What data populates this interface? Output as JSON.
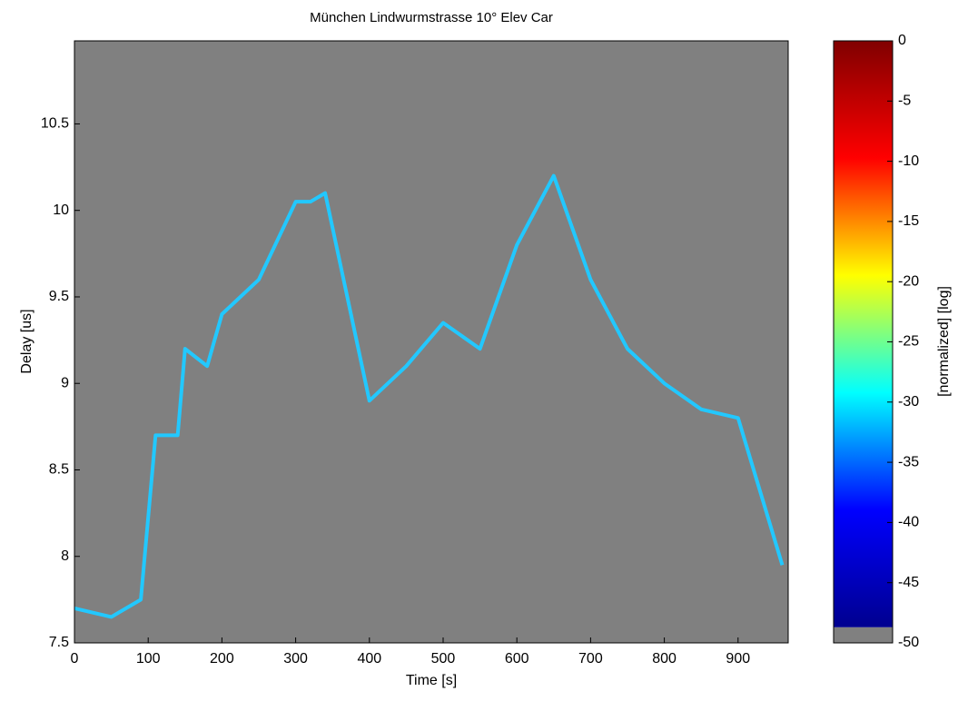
{
  "chart_data": {
    "type": "heatmap-trace",
    "title": "München Lindwurmstrasse 10° Elev Car",
    "x_label": "Time [s]",
    "y_label": "Delay [us]",
    "xlim": [
      0,
      968
    ],
    "ylim": [
      7.5,
      10.98
    ],
    "xticks": [
      0,
      100,
      200,
      300,
      400,
      500,
      600,
      700,
      800,
      900
    ],
    "yticks": [
      7.5,
      8,
      8.5,
      9,
      9.5,
      10,
      10.5
    ],
    "background": "#808080",
    "series": [
      {
        "color": "#22c8ff",
        "x": [
          0,
          50,
          90,
          110,
          140,
          150,
          180,
          200,
          250,
          300,
          320,
          340,
          400,
          450,
          500,
          550,
          600,
          650,
          700,
          750,
          800,
          850,
          900,
          960
        ],
        "values": [
          7.7,
          7.65,
          7.75,
          8.7,
          8.7,
          9.2,
          9.1,
          9.4,
          9.6,
          10.05,
          10.05,
          10.1,
          8.9,
          9.1,
          9.35,
          9.2,
          9.8,
          10.2,
          9.6,
          9.2,
          9.0,
          8.85,
          8.8,
          7.95
        ]
      }
    ],
    "colorbar": {
      "label": "[normalized] [log]",
      "clim": [
        -50,
        0
      ],
      "floor": -48.7,
      "ticks": [
        0,
        -5,
        -10,
        -15,
        -20,
        -25,
        -30,
        -35,
        -40,
        -45,
        -50
      ],
      "colormap": [
        "#00008f",
        "#0000ff",
        "#00ffff",
        "#ffff00",
        "#ff0000",
        "#800000"
      ]
    }
  }
}
